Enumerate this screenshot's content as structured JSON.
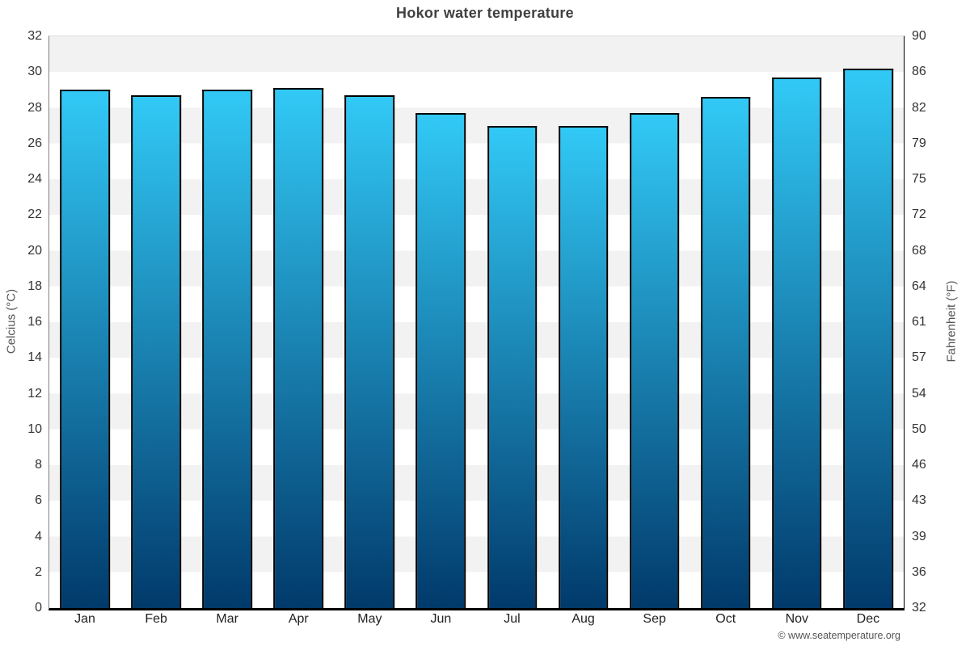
{
  "title": "Hokor water temperature",
  "copyright": "© www.seatemperature.org",
  "chart_data": {
    "type": "bar",
    "title": "Hokor water temperature",
    "categories": [
      "Jan",
      "Feb",
      "Mar",
      "Apr",
      "May",
      "Jun",
      "Jul",
      "Aug",
      "Sep",
      "Oct",
      "Nov",
      "Dec"
    ],
    "values": [
      29.0,
      28.7,
      29.0,
      29.1,
      28.7,
      27.7,
      27.0,
      27.0,
      27.7,
      28.6,
      29.7,
      30.2
    ],
    "unit": "°C",
    "xlabel": "",
    "ylabel_left": "Celcius (°C)",
    "ylabel_right": "Fahrenheit (°F)",
    "y_left_ticks": [
      0,
      2,
      4,
      6,
      8,
      10,
      12,
      14,
      16,
      18,
      20,
      22,
      24,
      26,
      28,
      30,
      32
    ],
    "y_right_ticks": [
      32,
      36,
      39,
      43,
      46,
      50,
      54,
      57,
      61,
      64,
      68,
      72,
      75,
      79,
      82,
      86,
      90
    ],
    "ylim": [
      0,
      32
    ],
    "legend": "none",
    "grid": "alternating-horizontal-bands",
    "colors": {
      "bar_gradient_top": "#32c9f6",
      "bar_gradient_bottom": "#013a6b",
      "bar_border": "#000000",
      "band_gray": "#f2f2f2",
      "band_white": "#ffffff",
      "axis_line_left": "#808080",
      "axis_line_right": "#000000",
      "title_text": "#404040",
      "tick_text": "#333333",
      "axis_title_text": "#555555",
      "copyright_text": "#555555"
    }
  }
}
